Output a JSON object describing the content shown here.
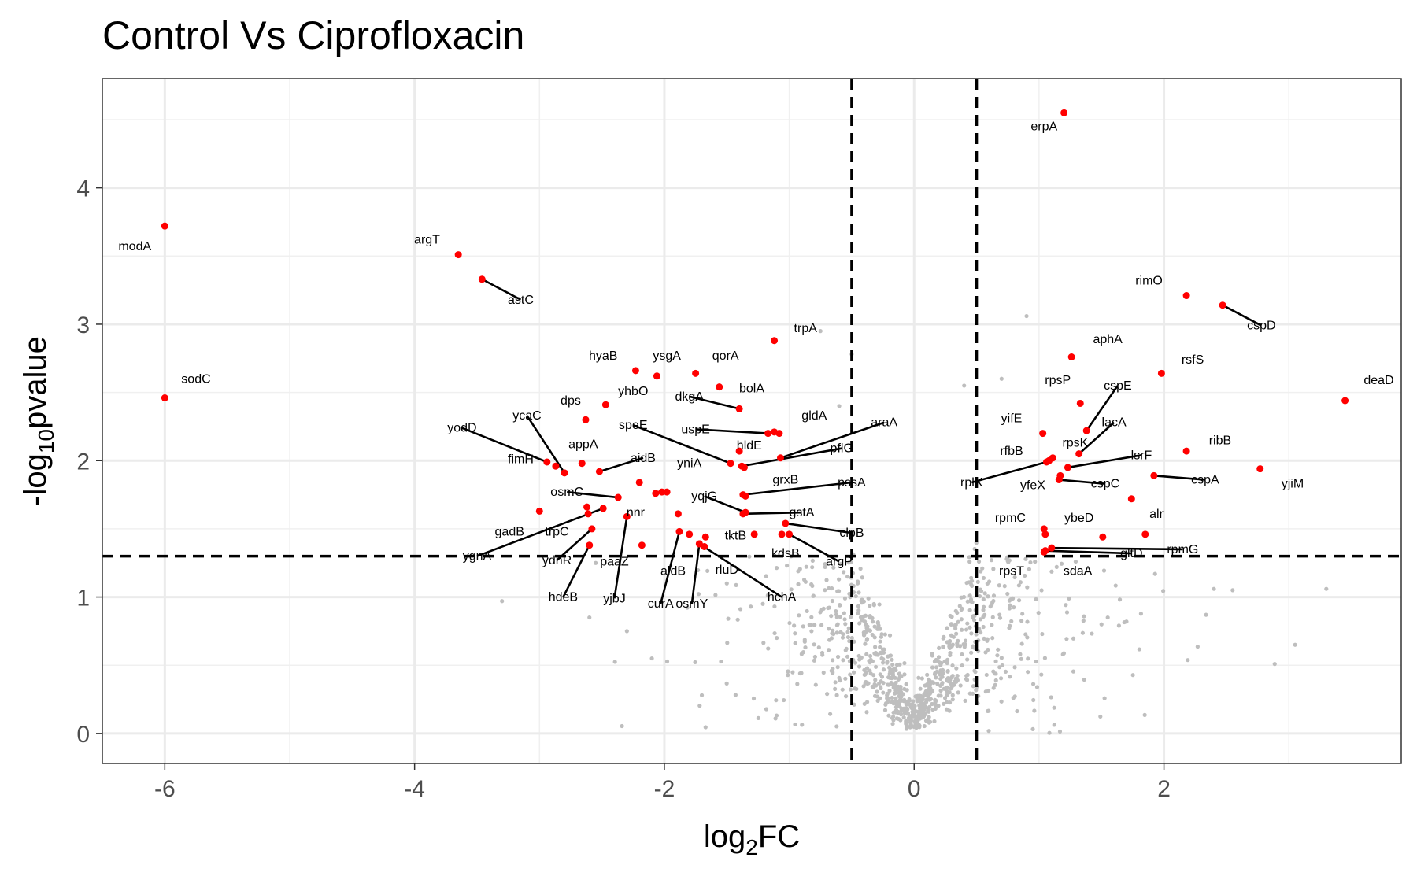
{
  "chart_data": {
    "type": "scatter",
    "title": "Control Vs Ciprofloxacin",
    "xlabel": "log2FC",
    "ylabel": "-log10pvalue",
    "xlim": [
      -6.5,
      3.9
    ],
    "ylim": [
      -0.22,
      4.8
    ],
    "x_ticks": [
      -6,
      -4,
      -2,
      0,
      2
    ],
    "y_ticks": [
      0,
      1,
      2,
      3,
      4
    ],
    "grid": true,
    "thresholds": {
      "log2FC": [
        -0.5,
        0.5
      ],
      "neg_log10_pvalue": 1.3
    },
    "colors": {
      "significant": "#ff0000",
      "nonsignificant": "#bebebe",
      "threshold_line": "#000000",
      "connector": "#000000"
    },
    "significant_points": [
      {
        "gene": "erpA",
        "x": 1.2,
        "y": 4.55,
        "label": {
          "x": 1.04,
          "y": 4.45
        }
      },
      {
        "gene": "modA",
        "x": -6.0,
        "y": 3.72,
        "label": {
          "x": -6.24,
          "y": 3.57
        }
      },
      {
        "gene": "argT",
        "x": -3.65,
        "y": 3.51,
        "label": {
          "x": -3.9,
          "y": 3.62
        }
      },
      {
        "gene": "astC",
        "x": -3.46,
        "y": 3.33,
        "label": {
          "x": -3.15,
          "y": 3.18
        }
      },
      {
        "gene": "sodC",
        "x": -6.0,
        "y": 2.46,
        "label": {
          "x": -5.75,
          "y": 2.6
        }
      },
      {
        "gene": "trpA",
        "x": -1.12,
        "y": 2.88,
        "label": {
          "x": -0.87,
          "y": 2.97
        }
      },
      {
        "gene": "hyaB",
        "x": -2.23,
        "y": 2.66,
        "label": {
          "x": -2.49,
          "y": 2.77
        }
      },
      {
        "gene": "ysgA",
        "x": -2.06,
        "y": 2.62,
        "label": {
          "x": -1.98,
          "y": 2.77
        }
      },
      {
        "gene": "qorA",
        "x": -1.75,
        "y": 2.64,
        "label": {
          "x": -1.51,
          "y": 2.77
        }
      },
      {
        "gene": "bolA",
        "x": -1.56,
        "y": 2.54,
        "label": {
          "x": -1.3,
          "y": 2.53
        }
      },
      {
        "gene": "dkgA",
        "x": -1.4,
        "y": 2.38,
        "label": {
          "x": -1.8,
          "y": 2.47
        }
      },
      {
        "gene": "yhbO",
        "x": -2.47,
        "y": 2.41,
        "label": {
          "x": -2.25,
          "y": 2.51
        }
      },
      {
        "gene": "dps",
        "x": -2.63,
        "y": 2.3,
        "label": {
          "x": -2.75,
          "y": 2.44
        }
      },
      {
        "gene": "gldA",
        "x": -1.08,
        "y": 2.2,
        "label": {
          "x": -0.8,
          "y": 2.33
        }
      },
      {
        "gene": "speE",
        "x": -1.47,
        "y": 1.98,
        "label": {
          "x": -2.25,
          "y": 2.26
        }
      },
      {
        "gene": "uspE",
        "x": -1.17,
        "y": 2.2,
        "label": {
          "x": -1.75,
          "y": 2.23
        }
      },
      {
        "gene": "hldE",
        "x": -1.4,
        "y": 2.07,
        "label": {
          "x": -1.32,
          "y": 2.11
        }
      },
      {
        "gene": "araA",
        "x": -1.07,
        "y": 2.02,
        "label": {
          "x": -0.24,
          "y": 2.28
        }
      },
      {
        "gene": "ycaC",
        "x": -2.8,
        "y": 1.91,
        "label": {
          "x": -3.1,
          "y": 2.33
        }
      },
      {
        "gene": "yodD",
        "x": -2.94,
        "y": 1.99,
        "label": {
          "x": -3.62,
          "y": 2.24
        }
      },
      {
        "gene": "appA",
        "x": -2.66,
        "y": 1.98,
        "label": {
          "x": -2.65,
          "y": 2.12
        }
      },
      {
        "gene": "aidB",
        "x": -2.52,
        "y": 1.92,
        "label": {
          "x": -2.17,
          "y": 2.02
        }
      },
      {
        "gene": "fimH",
        "x": -2.87,
        "y": 1.96,
        "label": {
          "x": -3.15,
          "y": 2.01
        }
      },
      {
        "gene": "pflG",
        "x": -1.38,
        "y": 1.96,
        "label": {
          "x": -0.58,
          "y": 2.09
        }
      },
      {
        "gene": "yniA",
        "x": -2.02,
        "y": 1.77,
        "label": {
          "x": -1.8,
          "y": 1.98
        }
      },
      {
        "gene": "osmC",
        "x": -2.37,
        "y": 1.73,
        "label": {
          "x": -2.78,
          "y": 1.77
        }
      },
      {
        "gene": "grxB",
        "x": -1.35,
        "y": 1.74,
        "label": {
          "x": -1.03,
          "y": 1.86
        }
      },
      {
        "gene": "pssA",
        "x": -1.37,
        "y": 1.75,
        "label": {
          "x": -0.5,
          "y": 1.84
        }
      },
      {
        "gene": "yqjG",
        "x": -1.35,
        "y": 1.62,
        "label": {
          "x": -1.68,
          "y": 1.74
        }
      },
      {
        "gene": "nnr",
        "x": -2.07,
        "y": 1.76,
        "label": {
          "x": -2.23,
          "y": 1.62
        }
      },
      {
        "gene": "gstA",
        "x": -1.37,
        "y": 1.61,
        "label": {
          "x": -0.9,
          "y": 1.62
        }
      },
      {
        "gene": "trpC",
        "x": -2.62,
        "y": 1.66,
        "label": {
          "x": -2.86,
          "y": 1.48
        }
      },
      {
        "gene": "gadB",
        "x": -3.0,
        "y": 1.63,
        "label": {
          "x": -3.24,
          "y": 1.48
        }
      },
      {
        "gene": "clpB",
        "x": -1.03,
        "y": 1.54,
        "label": {
          "x": -0.5,
          "y": 1.47
        }
      },
      {
        "gene": "tktB",
        "x": -1.28,
        "y": 1.46,
        "label": {
          "x": -1.43,
          "y": 1.45
        }
      },
      {
        "gene": "ygnA",
        "x": -2.49,
        "y": 1.65,
        "label": {
          "x": -3.5,
          "y": 1.3
        }
      },
      {
        "gene": "kdsB",
        "x": -1.06,
        "y": 1.46,
        "label": {
          "x": -1.03,
          "y": 1.32
        }
      },
      {
        "gene": "argP",
        "x": -1.0,
        "y": 1.46,
        "label": {
          "x": -0.6,
          "y": 1.26
        }
      },
      {
        "gene": "ydhR",
        "x": -2.58,
        "y": 1.5,
        "label": {
          "x": -2.86,
          "y": 1.27
        }
      },
      {
        "gene": "paaZ",
        "x": -2.18,
        "y": 1.38,
        "label": {
          "x": -2.4,
          "y": 1.26
        }
      },
      {
        "gene": "aldB",
        "x": -1.8,
        "y": 1.46,
        "label": {
          "x": -1.93,
          "y": 1.19
        }
      },
      {
        "gene": "rluD",
        "x": -1.68,
        "y": 1.37,
        "label": {
          "x": -1.5,
          "y": 1.2
        }
      },
      {
        "gene": "hdeB",
        "x": -2.6,
        "y": 1.38,
        "label": {
          "x": -2.81,
          "y": 1.0
        }
      },
      {
        "gene": "yjbJ",
        "x": -2.3,
        "y": 1.59,
        "label": {
          "x": -2.4,
          "y": 0.99
        }
      },
      {
        "gene": "curA",
        "x": -1.88,
        "y": 1.48,
        "label": {
          "x": -2.03,
          "y": 0.95
        }
      },
      {
        "gene": "osmY",
        "x": -1.72,
        "y": 1.39,
        "label": {
          "x": -1.78,
          "y": 0.95
        }
      },
      {
        "gene": "hchA",
        "x": -1.72,
        "y": 1.39,
        "label": {
          "x": -1.06,
          "y": 1.0
        }
      },
      {
        "gene": "rimO",
        "x": 2.18,
        "y": 3.21,
        "label": {
          "x": 1.88,
          "y": 3.32
        }
      },
      {
        "gene": "cspD",
        "x": 2.47,
        "y": 3.14,
        "label": {
          "x": 2.78,
          "y": 2.99
        }
      },
      {
        "gene": "aphA",
        "x": 1.26,
        "y": 2.76,
        "label": {
          "x": 1.55,
          "y": 2.89
        }
      },
      {
        "gene": "rsfS",
        "x": 1.98,
        "y": 2.64,
        "label": {
          "x": 2.23,
          "y": 2.74
        }
      },
      {
        "gene": "deaD",
        "x": 3.45,
        "y": 2.44,
        "label": {
          "x": 3.72,
          "y": 2.59
        }
      },
      {
        "gene": "rpsP",
        "x": 1.33,
        "y": 2.42,
        "label": {
          "x": 1.15,
          "y": 2.59
        }
      },
      {
        "gene": "cspE",
        "x": 1.38,
        "y": 2.22,
        "label": {
          "x": 1.63,
          "y": 2.55
        }
      },
      {
        "gene": "yifE",
        "x": 1.03,
        "y": 2.2,
        "label": {
          "x": 0.78,
          "y": 2.31
        }
      },
      {
        "gene": "lacA",
        "x": 1.32,
        "y": 2.05,
        "label": {
          "x": 1.6,
          "y": 2.28
        }
      },
      {
        "gene": "ribB",
        "x": 2.18,
        "y": 2.07,
        "label": {
          "x": 2.45,
          "y": 2.15
        }
      },
      {
        "gene": "rfbB",
        "x": 1.11,
        "y": 2.02,
        "label": {
          "x": 0.78,
          "y": 2.07
        }
      },
      {
        "gene": "rpsK",
        "x": 1.08,
        "y": 2.0,
        "label": {
          "x": 1.29,
          "y": 2.13
        }
      },
      {
        "gene": "lsrF",
        "x": 1.23,
        "y": 1.95,
        "label": {
          "x": 1.82,
          "y": 2.04
        }
      },
      {
        "gene": "yjiM",
        "x": 2.77,
        "y": 1.94,
        "label": {
          "x": 3.03,
          "y": 1.83
        }
      },
      {
        "gene": "rplX",
        "x": 1.06,
        "y": 1.99,
        "label": {
          "x": 0.46,
          "y": 1.84
        }
      },
      {
        "gene": "yfeX",
        "x": 1.17,
        "y": 1.89,
        "label": {
          "x": 0.95,
          "y": 1.82
        }
      },
      {
        "gene": "cspA",
        "x": 1.92,
        "y": 1.89,
        "label": {
          "x": 2.33,
          "y": 1.86
        }
      },
      {
        "gene": "cspC",
        "x": 1.16,
        "y": 1.86,
        "label": {
          "x": 1.53,
          "y": 1.83
        }
      },
      {
        "gene": "alr",
        "x": 1.74,
        "y": 1.72,
        "label": {
          "x": 1.94,
          "y": 1.61
        }
      },
      {
        "gene": "rpmC",
        "x": 1.04,
        "y": 1.5,
        "label": {
          "x": 0.77,
          "y": 1.58
        }
      },
      {
        "gene": "ybeD",
        "x": 1.05,
        "y": 1.46,
        "label": {
          "x": 1.32,
          "y": 1.58
        }
      },
      {
        "gene": "lsrF2",
        "x": 1.85,
        "y": 1.46,
        "label": null
      },
      {
        "gene": "sdaA",
        "x": 1.51,
        "y": 1.44,
        "label": {
          "x": 1.31,
          "y": 1.19
        }
      },
      {
        "gene": "gltD",
        "x": 1.05,
        "y": 1.34,
        "label": {
          "x": 1.74,
          "y": 1.32
        }
      },
      {
        "gene": "rpmG",
        "x": 1.1,
        "y": 1.36,
        "label": {
          "x": 2.15,
          "y": 1.35
        }
      },
      {
        "gene": "rpsT",
        "x": 1.04,
        "y": 1.33,
        "label": {
          "x": 0.78,
          "y": 1.19
        }
      },
      {
        "gene": "extra_a",
        "x": -1.12,
        "y": 2.21,
        "label": null
      },
      {
        "gene": "extra_b",
        "x": -2.2,
        "y": 1.84,
        "label": null
      },
      {
        "gene": "extra_c",
        "x": -1.98,
        "y": 1.77,
        "label": null
      },
      {
        "gene": "extra_d",
        "x": -1.89,
        "y": 1.61,
        "label": null
      },
      {
        "gene": "extra_e",
        "x": -1.67,
        "y": 1.44,
        "label": null
      },
      {
        "gene": "extra_f",
        "x": -1.36,
        "y": 1.95,
        "label": null
      },
      {
        "gene": "extra_g",
        "x": -2.61,
        "y": 1.61,
        "label": null
      }
    ],
    "background_points_note": ""
  }
}
